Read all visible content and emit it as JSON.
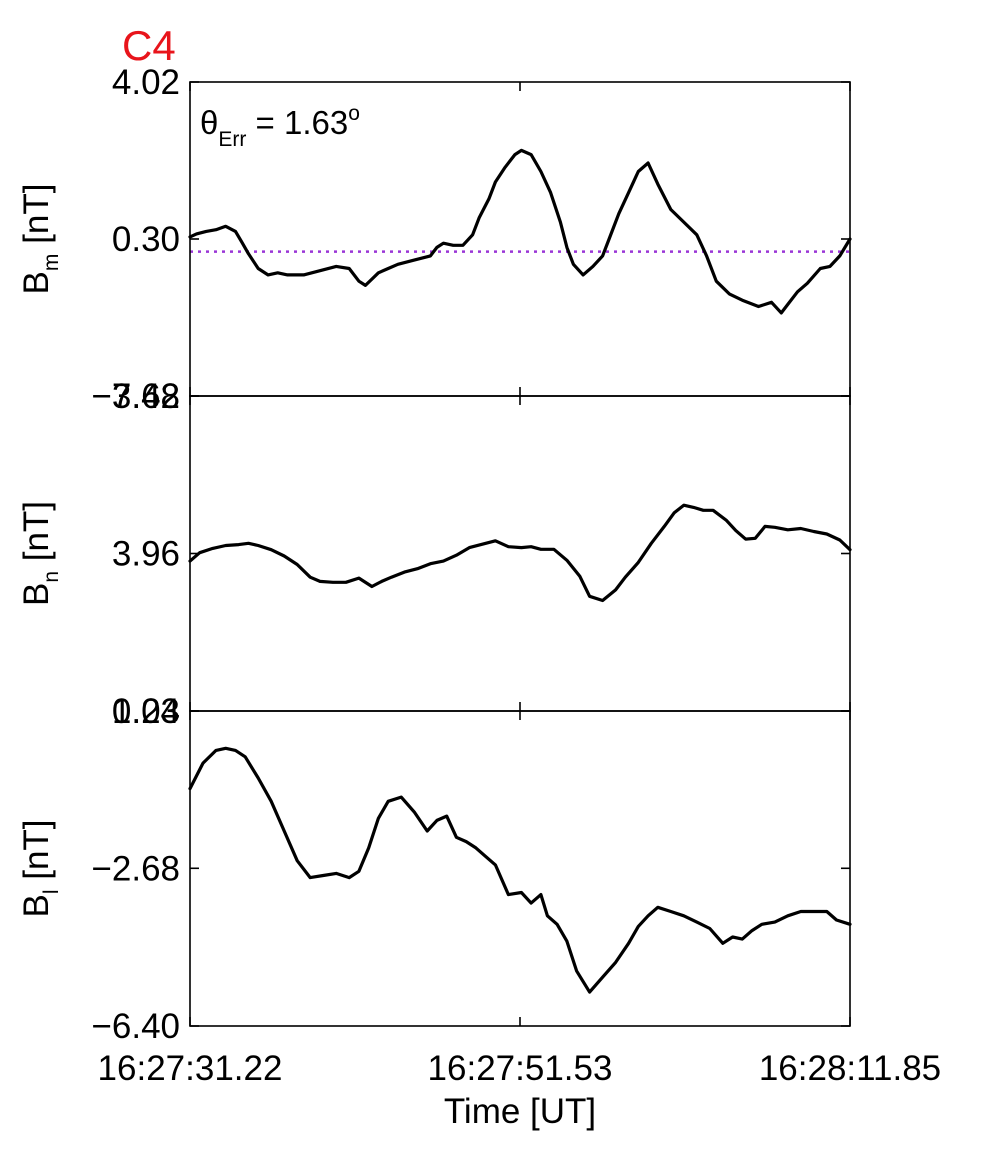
{
  "figure": {
    "panel_label": "C4",
    "panel_label_color": "#e8141b",
    "annotation": {
      "symbol": "θ",
      "subscript": "Err",
      "rest": " =  1.63",
      "superscript": "o"
    },
    "reference_line_color": "#9a36d6"
  },
  "chart_data": {
    "type": "line",
    "x_axis": {
      "label": "Time [UT]",
      "range_seconds": [
        0,
        40.63
      ],
      "ticks": [
        {
          "label": "16:27:31.22",
          "value": 0
        },
        {
          "label": "16:27:51.53",
          "value": 20.315
        },
        {
          "label": "16:28:11.85",
          "value": 40.63
        }
      ]
    },
    "panels": [
      {
        "name": "Bm",
        "ylabel_main": "B",
        "ylabel_sub": "m",
        "ylabel_unit": " [nT]",
        "ylim": [
          -3.42,
          4.02
        ],
        "ticks": [
          {
            "label": "4.02",
            "value": 4.02
          },
          {
            "label": "0.30",
            "value": 0.3
          },
          {
            "label": "−3.42",
            "value": -3.42
          }
        ],
        "reference_line": 0.0,
        "series": [
          {
            "x": [
              0,
              0.4,
              1.0,
              1.6,
              2.2,
              2.8,
              3.2,
              3.6,
              4.2,
              4.8,
              5.4,
              6.0,
              7.0,
              8.0,
              9.0,
              9.8,
              10.4,
              10.8,
              11.2,
              11.6,
              12.2,
              12.8,
              13.8,
              14.8,
              15.2,
              15.6,
              16.2,
              16.8,
              17.4,
              17.8,
              18.4,
              18.8,
              19.4,
              20.0,
              20.4,
              21.0,
              21.6,
              22.2,
              22.8,
              23.2,
              23.6,
              24.2,
              24.8,
              25.4,
              25.8,
              26.4,
              27.0,
              27.6,
              28.2,
              28.8,
              29.6,
              30.4,
              31.2,
              31.8,
              32.4,
              33.2,
              34.0,
              35.0,
              35.8,
              36.4,
              36.8,
              37.4,
              38.0,
              38.8,
              39.4,
              40.0,
              40.63
            ],
            "y": [
              0.35,
              0.42,
              0.48,
              0.52,
              0.6,
              0.48,
              0.22,
              -0.05,
              -0.4,
              -0.55,
              -0.5,
              -0.55,
              -0.55,
              -0.45,
              -0.35,
              -0.4,
              -0.7,
              -0.8,
              -0.65,
              -0.5,
              -0.4,
              -0.3,
              -0.2,
              -0.1,
              0.1,
              0.2,
              0.15,
              0.15,
              0.4,
              0.8,
              1.25,
              1.65,
              2.0,
              2.3,
              2.4,
              2.3,
              1.9,
              1.4,
              0.7,
              0.1,
              -0.3,
              -0.55,
              -0.35,
              -0.1,
              0.3,
              0.9,
              1.4,
              1.9,
              2.1,
              1.6,
              1.0,
              0.7,
              0.4,
              -0.1,
              -0.7,
              -1.0,
              -1.15,
              -1.3,
              -1.2,
              -1.45,
              -1.25,
              -0.95,
              -0.75,
              -0.4,
              -0.35,
              -0.1,
              0.3
            ]
          }
        ]
      },
      {
        "name": "Bn",
        "ylabel_main": "B",
        "ylabel_sub": "n",
        "ylabel_unit": " [nT]",
        "ylim": [
          0.24,
          7.68
        ],
        "ticks": [
          {
            "label": "7.68",
            "value": 7.68
          },
          {
            "label": "3.96",
            "value": 3.96
          },
          {
            "label": "0.24",
            "value": 0.24
          }
        ],
        "series": [
          {
            "x": [
              0,
              0.6,
              1.4,
              2.2,
              3.0,
              3.6,
              4.2,
              5.0,
              5.8,
              6.6,
              7.4,
              8.0,
              8.8,
              9.6,
              10.4,
              11.2,
              11.8,
              12.4,
              13.2,
              14.0,
              14.8,
              15.6,
              16.4,
              17.2,
              18.0,
              18.8,
              19.6,
              20.4,
              21.0,
              21.6,
              22.4,
              23.2,
              24.0,
              24.6,
              25.4,
              26.2,
              26.8,
              27.6,
              28.4,
              29.2,
              29.8,
              30.4,
              31.0,
              31.6,
              32.2,
              33.0,
              33.6,
              34.2,
              34.8,
              35.4,
              36.0,
              36.8,
              37.6,
              38.4,
              39.2,
              40.0,
              40.63
            ],
            "y": [
              3.78,
              3.98,
              4.08,
              4.15,
              4.17,
              4.2,
              4.15,
              4.05,
              3.9,
              3.7,
              3.4,
              3.3,
              3.28,
              3.28,
              3.38,
              3.18,
              3.3,
              3.4,
              3.52,
              3.6,
              3.72,
              3.78,
              3.92,
              4.1,
              4.18,
              4.26,
              4.12,
              4.1,
              4.12,
              4.06,
              4.06,
              3.8,
              3.42,
              2.95,
              2.85,
              3.1,
              3.4,
              3.75,
              4.2,
              4.6,
              4.92,
              5.1,
              5.05,
              4.98,
              4.98,
              4.75,
              4.5,
              4.3,
              4.32,
              4.6,
              4.58,
              4.52,
              4.55,
              4.48,
              4.42,
              4.28,
              4.05
            ]
          }
        ]
      },
      {
        "name": "Bl",
        "ylabel_main": "B",
        "ylabel_sub": "l",
        "ylabel_unit": " [nT]",
        "ylim": [
          -6.4,
          1.03
        ],
        "ticks": [
          {
            "label": "1.03",
            "value": 1.03
          },
          {
            "label": "−2.68",
            "value": -2.68
          },
          {
            "label": "−6.40",
            "value": -6.4
          }
        ],
        "series": [
          {
            "x": [
              0,
              0.8,
              1.6,
              2.2,
              2.8,
              3.4,
              4.2,
              5.0,
              5.8,
              6.6,
              7.4,
              8.2,
              9.0,
              9.8,
              10.4,
              11.0,
              11.6,
              12.2,
              13.0,
              13.8,
              14.6,
              15.2,
              15.8,
              16.4,
              17.0,
              17.6,
              18.2,
              18.8,
              19.6,
              20.4,
              21.0,
              21.6,
              22.0,
              22.6,
              23.2,
              23.8,
              24.6,
              25.4,
              26.2,
              27.0,
              27.6,
              28.2,
              28.8,
              29.6,
              30.4,
              31.2,
              32.0,
              32.8,
              33.4,
              34.0,
              34.6,
              35.2,
              36.0,
              36.8,
              37.6,
              38.4,
              39.2,
              39.8,
              40.63
            ],
            "y": [
              -0.8,
              -0.2,
              0.1,
              0.15,
              0.1,
              -0.05,
              -0.55,
              -1.1,
              -1.8,
              -2.5,
              -2.9,
              -2.85,
              -2.8,
              -2.9,
              -2.75,
              -2.2,
              -1.5,
              -1.1,
              -1.0,
              -1.35,
              -1.8,
              -1.55,
              -1.45,
              -1.95,
              -2.05,
              -2.2,
              -2.4,
              -2.6,
              -3.3,
              -3.25,
              -3.5,
              -3.3,
              -3.8,
              -4.0,
              -4.4,
              -5.1,
              -5.6,
              -5.25,
              -4.9,
              -4.45,
              -4.05,
              -3.8,
              -3.6,
              -3.7,
              -3.8,
              -3.95,
              -4.1,
              -4.45,
              -4.3,
              -4.35,
              -4.15,
              -4.0,
              -3.95,
              -3.8,
              -3.7,
              -3.7,
              -3.7,
              -3.9,
              -4.0
            ]
          }
        ]
      }
    ]
  }
}
